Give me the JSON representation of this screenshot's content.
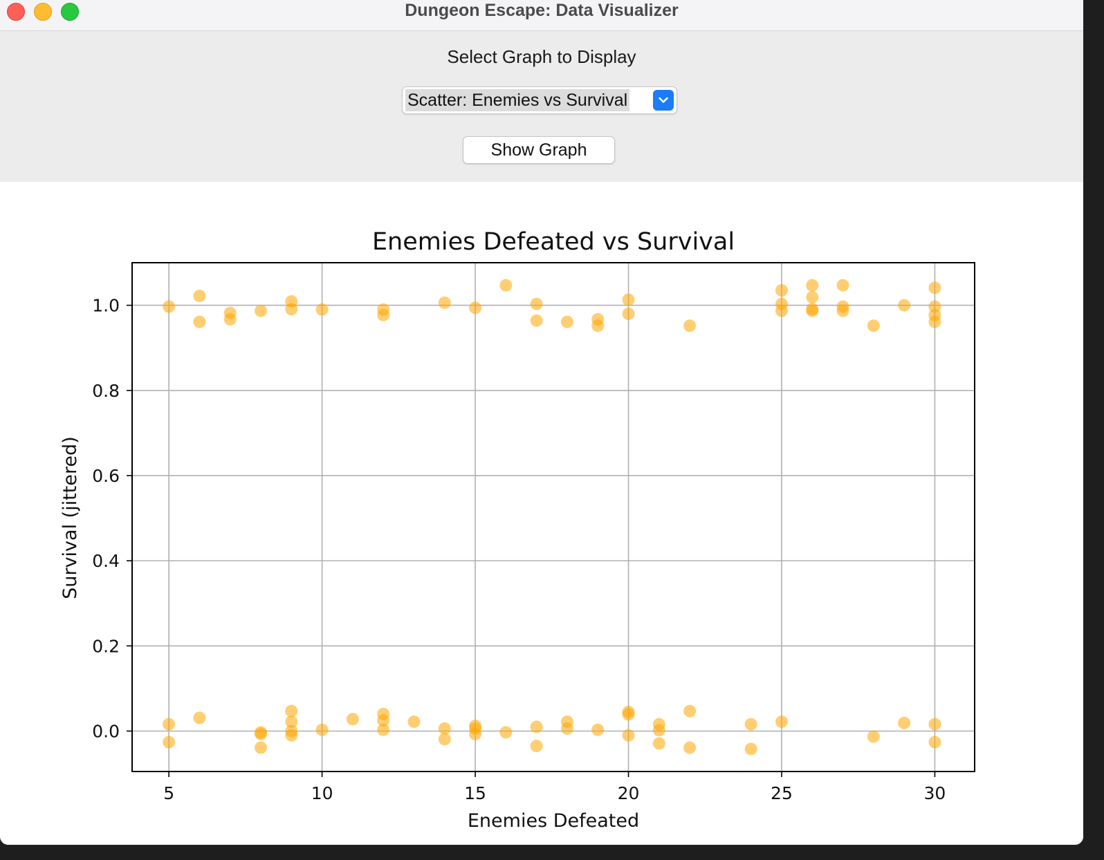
{
  "window": {
    "title": "Dungeon Escape: Data Visualizer"
  },
  "controls": {
    "select_label": "Select Graph to Display",
    "selected_graph": "Scatter: Enemies vs Survival",
    "show_button": "Show Graph"
  },
  "chart_data": {
    "type": "scatter",
    "title": "Enemies Defeated vs Survival",
    "xlabel": "Enemies Defeated",
    "ylabel": "Survival (jittered)",
    "xlim": [
      3.8,
      31.3
    ],
    "ylim": [
      -0.095,
      1.1
    ],
    "xticks": [
      5,
      10,
      15,
      20,
      25,
      30
    ],
    "yticks": [
      0.0,
      0.2,
      0.4,
      0.6,
      0.8,
      1.0
    ],
    "ytick_labels": [
      "0.0",
      "0.2",
      "0.4",
      "0.6",
      "0.8",
      "1.0"
    ],
    "grid": true,
    "marker_color": "#ffa500",
    "marker_alpha": 0.55,
    "points": [
      [
        5,
        0.997
      ],
      [
        5,
        0.016
      ],
      [
        5,
        -0.026
      ],
      [
        6,
        1.022
      ],
      [
        6,
        0.961
      ],
      [
        6,
        0.031
      ],
      [
        7,
        0.982
      ],
      [
        7,
        0.967
      ],
      [
        8,
        0.987
      ],
      [
        8,
        -0.003
      ],
      [
        8,
        -0.007
      ],
      [
        8,
        -0.039
      ],
      [
        9,
        1.009
      ],
      [
        9,
        0.991
      ],
      [
        9,
        0.047
      ],
      [
        9,
        0.022
      ],
      [
        9,
        0.0
      ],
      [
        9,
        -0.01
      ],
      [
        10,
        0.99
      ],
      [
        10,
        0.003
      ],
      [
        11,
        0.028
      ],
      [
        12,
        0.99
      ],
      [
        12,
        0.977
      ],
      [
        12,
        0.04
      ],
      [
        12,
        0.025
      ],
      [
        12,
        0.003
      ],
      [
        13,
        0.022
      ],
      [
        14,
        1.006
      ],
      [
        14,
        0.006
      ],
      [
        14,
        -0.019
      ],
      [
        15,
        0.994
      ],
      [
        15,
        0.012
      ],
      [
        15,
        0.006
      ],
      [
        15,
        -0.007
      ],
      [
        16,
        1.047
      ],
      [
        16,
        -0.003
      ],
      [
        17,
        1.003
      ],
      [
        17,
        0.964
      ],
      [
        17,
        0.01
      ],
      [
        17,
        -0.035
      ],
      [
        18,
        0.961
      ],
      [
        18,
        0.022
      ],
      [
        18,
        0.006
      ],
      [
        19,
        0.967
      ],
      [
        19,
        0.952
      ],
      [
        19,
        0.003
      ],
      [
        20,
        1.013
      ],
      [
        20,
        0.98
      ],
      [
        20,
        0.045
      ],
      [
        20,
        0.039
      ],
      [
        20,
        -0.01
      ],
      [
        21,
        0.016
      ],
      [
        21,
        0.002
      ],
      [
        21,
        -0.029
      ],
      [
        22,
        0.952
      ],
      [
        22,
        0.047
      ],
      [
        22,
        -0.039
      ],
      [
        24,
        0.016
      ],
      [
        24,
        -0.042
      ],
      [
        25,
        1.035
      ],
      [
        25,
        1.003
      ],
      [
        25,
        0.987
      ],
      [
        25,
        0.022
      ],
      [
        26,
        1.047
      ],
      [
        26,
        1.019
      ],
      [
        26,
        0.991
      ],
      [
        26,
        0.987
      ],
      [
        27,
        1.047
      ],
      [
        27,
        0.997
      ],
      [
        27,
        0.987
      ],
      [
        28,
        0.952
      ],
      [
        28,
        -0.013
      ],
      [
        29,
        1.0
      ],
      [
        29,
        0.019
      ],
      [
        30,
        1.041
      ],
      [
        30,
        0.997
      ],
      [
        30,
        0.977
      ],
      [
        30,
        0.961
      ],
      [
        30,
        0.016
      ],
      [
        30,
        -0.026
      ]
    ]
  }
}
